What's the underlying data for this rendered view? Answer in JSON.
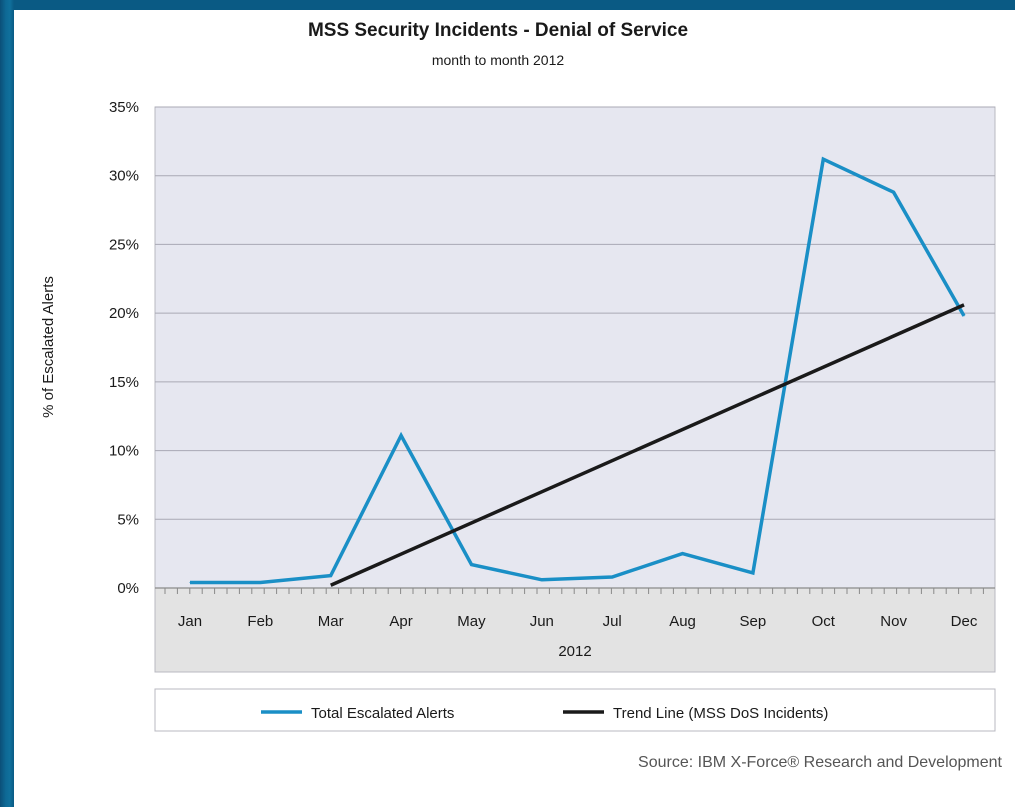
{
  "chart_data": {
    "type": "line",
    "title": "MSS Security Incidents - Denial of Service",
    "subtitle": "month to month 2012",
    "xlabel": "2012",
    "ylabel": "% of Escalated Alerts",
    "categories": [
      "Jan",
      "Feb",
      "Mar",
      "Apr",
      "May",
      "Jun",
      "Jul",
      "Aug",
      "Sep",
      "Oct",
      "Nov",
      "Dec"
    ],
    "yticks": [
      "0%",
      "5%",
      "10%",
      "15%",
      "20%",
      "25%",
      "30%",
      "35%"
    ],
    "ylim": [
      0,
      35
    ],
    "grid": true,
    "legend_position": "bottom",
    "series": [
      {
        "name": "Total Escalated Alerts",
        "color": "#1a8fc6",
        "values": [
          0.4,
          0.4,
          0.9,
          11.1,
          1.7,
          0.6,
          0.8,
          2.5,
          1.1,
          31.2,
          28.8,
          19.8
        ]
      },
      {
        "name": "Trend Line (MSS DoS Incidents)",
        "color": "#1a1a1a",
        "x_start": "Mar",
        "x_end": "Dec",
        "y_start": 0.2,
        "y_end": 20.6
      }
    ]
  },
  "source": "Source: IBM X-Force® Research and Development"
}
